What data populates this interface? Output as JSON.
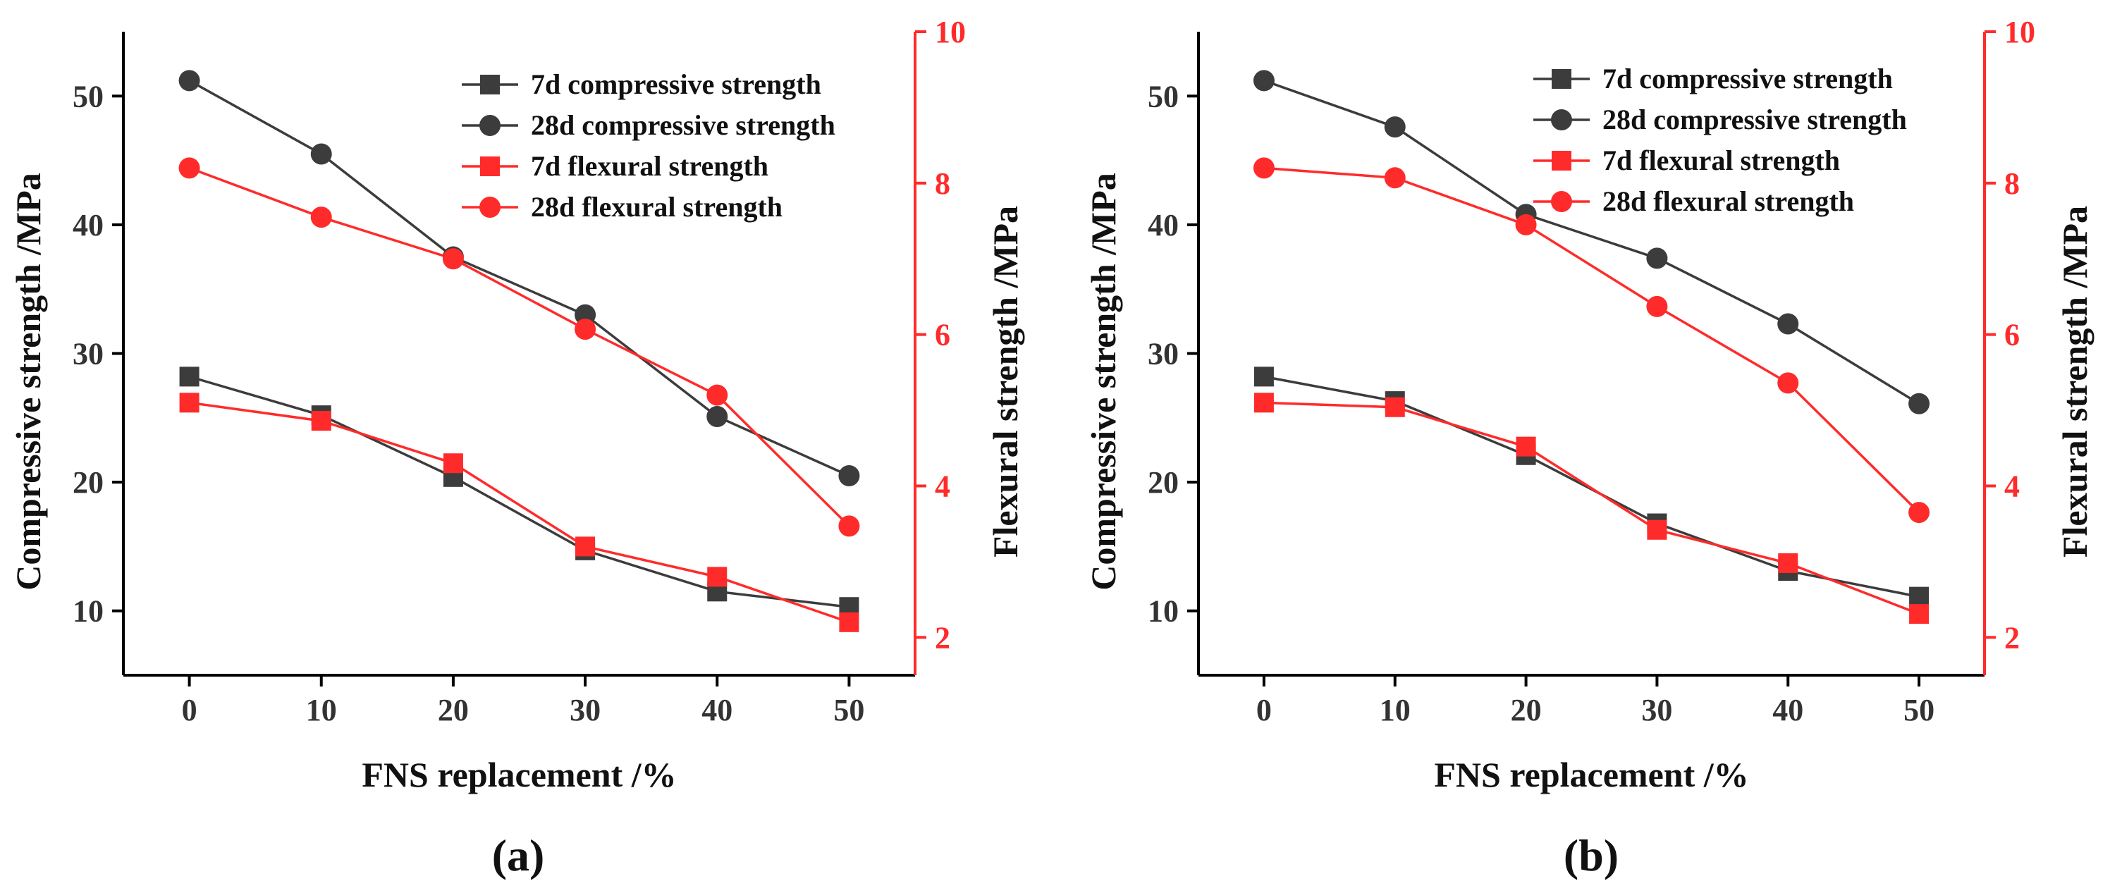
{
  "colors": {
    "gray": "#3c3c3c",
    "red": "#ff2b2b",
    "axis": "#000000"
  },
  "chart_data": [
    {
      "type": "line",
      "panel_label": "(a)",
      "xlabel": "FNS replacement /%",
      "ylabel_left": "Compressive strength /MPa",
      "ylabel_right": "Flexural strength /MPa",
      "x": [
        0,
        10,
        20,
        30,
        40,
        50
      ],
      "xlim": [
        -5,
        55
      ],
      "x_ticks": [
        "0",
        "10",
        "20",
        "30",
        "40",
        "50"
      ],
      "ylim_left": [
        5,
        55
      ],
      "y_ticks_left": [
        "10",
        "20",
        "30",
        "40",
        "50"
      ],
      "ylim_right": [
        1.5,
        10
      ],
      "y_ticks_right": [
        "2",
        "4",
        "6",
        "8",
        "10"
      ],
      "legend_position": "top-right",
      "grid": false,
      "series": [
        {
          "name": "7d compressive strength",
          "axis": "left",
          "marker": "square",
          "color": "gray",
          "values": [
            28.2,
            25.2,
            20.4,
            14.7,
            11.5,
            10.3
          ]
        },
        {
          "name": "28d compressive strength",
          "axis": "left",
          "marker": "circle",
          "color": "gray",
          "values": [
            51.2,
            45.5,
            37.5,
            33.0,
            25.1,
            20.5
          ]
        },
        {
          "name": "7d flexural strength",
          "axis": "right",
          "marker": "square",
          "color": "red",
          "values": [
            5.1,
            4.86,
            4.3,
            3.2,
            2.8,
            2.2
          ]
        },
        {
          "name": "28d flexural strength",
          "axis": "right",
          "marker": "circle",
          "color": "red",
          "values": [
            8.2,
            7.55,
            7.0,
            6.07,
            5.2,
            3.47
          ]
        }
      ]
    },
    {
      "type": "line",
      "panel_label": "(b)",
      "xlabel": "FNS replacement /%",
      "ylabel_left": "Compressive strength /MPa",
      "ylabel_right": "Flexural strength /MPa",
      "x": [
        0,
        10,
        20,
        30,
        40,
        50
      ],
      "xlim": [
        -5,
        55
      ],
      "x_ticks": [
        "0",
        "10",
        "20",
        "30",
        "40",
        "50"
      ],
      "ylim_left": [
        5,
        55
      ],
      "y_ticks_left": [
        "10",
        "20",
        "30",
        "40",
        "50"
      ],
      "ylim_right": [
        1.5,
        10
      ],
      "y_ticks_right": [
        "2",
        "4",
        "6",
        "8",
        "10"
      ],
      "legend_position": "top-right",
      "grid": false,
      "series": [
        {
          "name": "7d compressive strength",
          "axis": "left",
          "marker": "square",
          "color": "gray",
          "values": [
            28.2,
            26.3,
            22.1,
            16.8,
            13.1,
            11.1
          ]
        },
        {
          "name": "28d compressive strength",
          "axis": "left",
          "marker": "circle",
          "color": "gray",
          "values": [
            51.2,
            47.6,
            40.8,
            37.4,
            32.3,
            26.1
          ]
        },
        {
          "name": "7d flexural strength",
          "axis": "right",
          "marker": "square",
          "color": "red",
          "values": [
            5.1,
            5.04,
            4.52,
            3.42,
            2.98,
            2.31
          ]
        },
        {
          "name": "28d flexural strength",
          "axis": "right",
          "marker": "circle",
          "color": "red",
          "values": [
            8.2,
            8.07,
            7.45,
            6.37,
            5.36,
            3.65
          ]
        }
      ]
    }
  ]
}
